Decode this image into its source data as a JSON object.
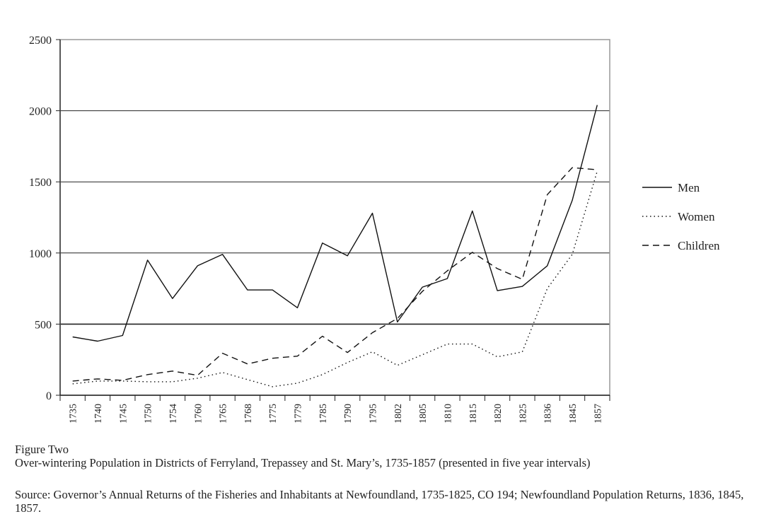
{
  "chart_data": {
    "type": "line",
    "categories": [
      "1735",
      "1740",
      "1745",
      "1750",
      "1754",
      "1760",
      "1765",
      "1768",
      "1775",
      "1779",
      "1785",
      "1790",
      "1795",
      "1802",
      "1805",
      "1810",
      "1815",
      "1820",
      "1825",
      "1836",
      "1845",
      "1857"
    ],
    "series": [
      {
        "name": "Men",
        "style": "solid",
        "values": [
          410,
          380,
          420,
          950,
          680,
          910,
          990,
          740,
          740,
          615,
          1070,
          980,
          1280,
          515,
          760,
          820,
          1295,
          735,
          765,
          910,
          1370,
          2040
        ]
      },
      {
        "name": "Women",
        "style": "dotted",
        "values": [
          80,
          100,
          100,
          95,
          95,
          120,
          160,
          110,
          60,
          85,
          145,
          230,
          305,
          210,
          285,
          360,
          360,
          270,
          305,
          750,
          990,
          1575
        ]
      },
      {
        "name": "Children",
        "style": "dashed",
        "values": [
          100,
          115,
          105,
          145,
          170,
          140,
          295,
          220,
          260,
          275,
          415,
          300,
          440,
          540,
          730,
          875,
          1005,
          890,
          815,
          1410,
          1600,
          1585
        ]
      }
    ],
    "ylim": [
      0,
      2500
    ],
    "yticks": [
      "0",
      "500",
      "1000",
      "1500",
      "2000",
      "2500"
    ],
    "grid": true,
    "legend_position": "right"
  },
  "caption": {
    "label": "Figure Two",
    "title": "Over-wintering Population in Districts of Ferryland, Trepassey and St. Mary’s, 1735-1857 (presented in five year intervals)",
    "source": "Source: Governor’s Annual Returns of the Fisheries and Inhabitants at Newfoundland, 1735-1825, CO 194; Newfoundland Population Returns, 1836, 1845, 1857."
  }
}
